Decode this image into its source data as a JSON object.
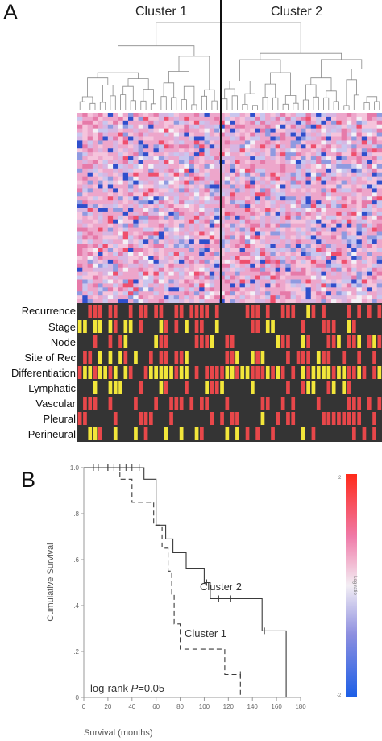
{
  "panel_a": {
    "letter": "A",
    "clusters": [
      "Cluster 1",
      "Cluster 2"
    ],
    "clinical_rows": [
      "Recurrence",
      "Stage",
      "Node",
      "Site of Rec",
      "Differentiation",
      "Lymphatic",
      "Vascular",
      "Pleural",
      "Perineural"
    ]
  },
  "panel_b": {
    "letter": "B",
    "ylabel": "Cumulative Survival",
    "xlabel": "Survival (months)",
    "stat_prefix": "log-rank ",
    "stat_p": "P",
    "stat_value": "=0.05",
    "color_scale": {
      "top": "2",
      "label": "Log-ratio",
      "bottom": "-2"
    }
  },
  "colors": {
    "red": "#e8474a",
    "yellow": "#f2e63a",
    "dark": "#343434",
    "heat_pink": "#e88ec0",
    "heat_blue": "#2845c8"
  },
  "chart_data": [
    {
      "type": "heatmap",
      "title": "",
      "columns_left": 28,
      "columns_right": 32,
      "annotation_rows": [
        "Recurrence",
        "Stage",
        "Node",
        "Site of Rec",
        "Differentiation",
        "Lymphatic",
        "Vascular",
        "Pleural",
        "Perineural"
      ],
      "scale": {
        "min": -2,
        "max": 2,
        "label": "Log-ratio"
      }
    },
    {
      "type": "line",
      "xlabel": "Survival (months)",
      "ylabel": "Cumulative Survival",
      "xlim": [
        0,
        180
      ],
      "ylim": [
        0,
        1
      ],
      "x_ticks": [
        0,
        20,
        40,
        60,
        80,
        100,
        120,
        140,
        160,
        180
      ],
      "y_ticks": [
        0,
        0.2,
        0.4,
        0.6,
        0.8,
        1.0
      ],
      "y_tick_labels": [
        "0",
        ".2",
        ".4",
        ".6",
        ".8",
        "1.0"
      ],
      "series": [
        {
          "name": "Cluster 2",
          "style": "solid",
          "points": [
            [
              0,
              1.0
            ],
            [
              50,
              1.0
            ],
            [
              50,
              0.95
            ],
            [
              60,
              0.95
            ],
            [
              60,
              0.75
            ],
            [
              68,
              0.75
            ],
            [
              68,
              0.69
            ],
            [
              74,
              0.69
            ],
            [
              74,
              0.63
            ],
            [
              85,
              0.63
            ],
            [
              85,
              0.56
            ],
            [
              100,
              0.56
            ],
            [
              100,
              0.5
            ],
            [
              105,
              0.5
            ],
            [
              105,
              0.43
            ],
            [
              148,
              0.43
            ],
            [
              148,
              0.29
            ],
            [
              168,
              0.29
            ],
            [
              168,
              0.0
            ]
          ],
          "censors": [
            [
              8,
              1.0
            ],
            [
              12,
              1.0
            ],
            [
              20,
              1.0
            ],
            [
              25,
              1.0
            ],
            [
              30,
              1.0
            ],
            [
              35,
              1.0
            ],
            [
              40,
              1.0
            ],
            [
              46,
              1.0
            ],
            [
              102,
              0.5
            ],
            [
              112,
              0.43
            ],
            [
              122,
              0.43
            ],
            [
              150,
              0.29
            ]
          ]
        },
        {
          "name": "Cluster 1",
          "style": "dashed",
          "points": [
            [
              0,
              1.0
            ],
            [
              30,
              1.0
            ],
            [
              30,
              0.95
            ],
            [
              40,
              0.95
            ],
            [
              40,
              0.85
            ],
            [
              58,
              0.85
            ],
            [
              58,
              0.75
            ],
            [
              65,
              0.75
            ],
            [
              65,
              0.65
            ],
            [
              70,
              0.65
            ],
            [
              70,
              0.55
            ],
            [
              73,
              0.55
            ],
            [
              73,
              0.45
            ],
            [
              75,
              0.45
            ],
            [
              75,
              0.32
            ],
            [
              80,
              0.32
            ],
            [
              80,
              0.21
            ],
            [
              117,
              0.21
            ],
            [
              117,
              0.1
            ],
            [
              130,
              0.1
            ],
            [
              130,
              0.0
            ]
          ],
          "censors": [
            [
              20,
              1.0
            ],
            [
              130,
              0.1
            ]
          ]
        }
      ]
    }
  ]
}
